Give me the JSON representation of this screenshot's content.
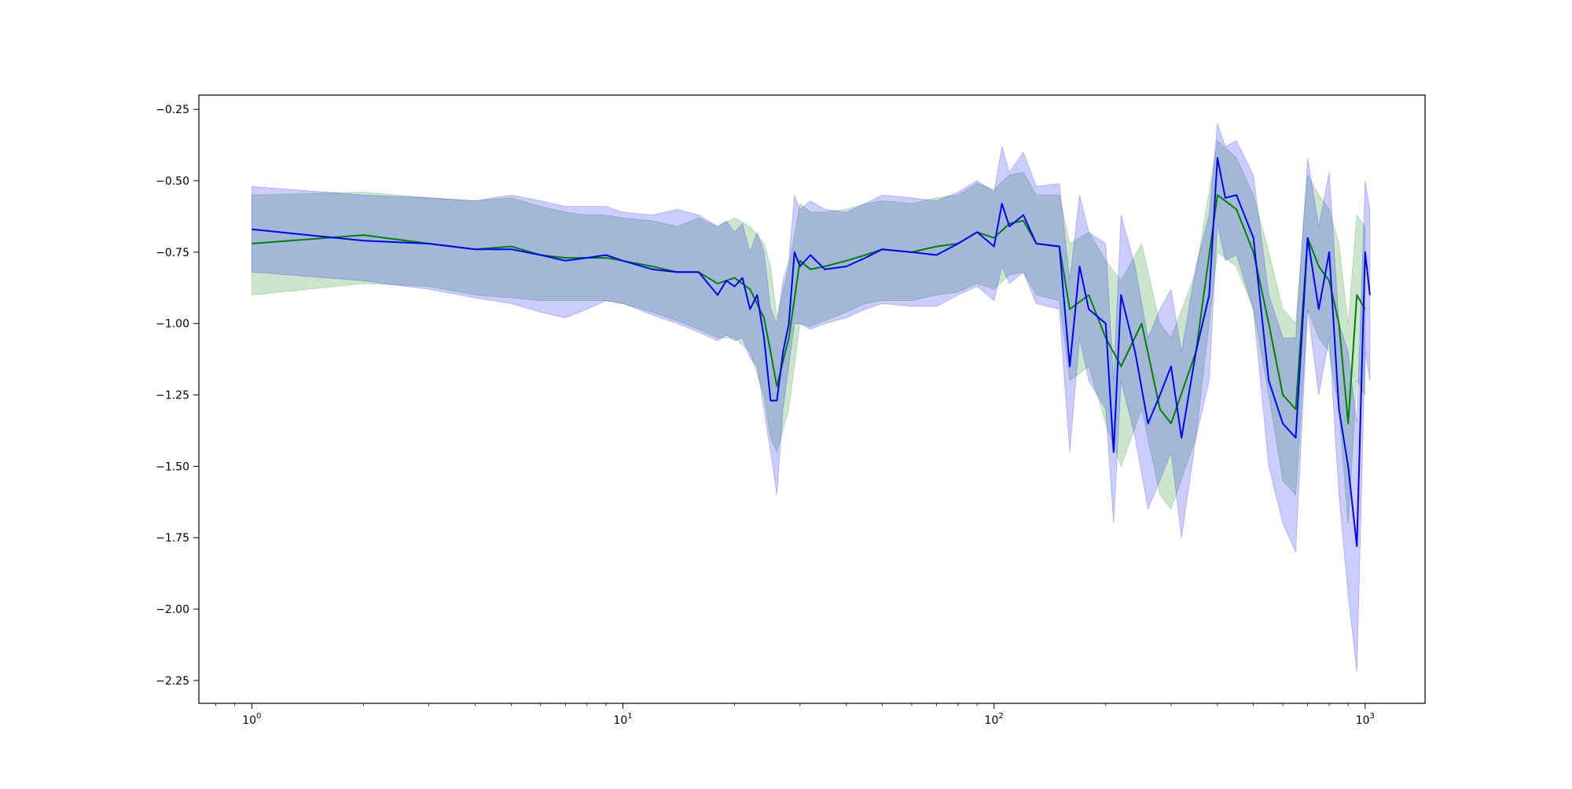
{
  "chart_data": {
    "type": "line",
    "title": "",
    "xlabel": "",
    "ylabel": "",
    "x_scale": "log",
    "xlim": [
      0.72,
      1450
    ],
    "ylim": [
      -2.33,
      -0.2
    ],
    "grid": false,
    "x_ticks": [
      {
        "value": 1,
        "base": "10",
        "exp": "0"
      },
      {
        "value": 10,
        "base": "10",
        "exp": "1"
      },
      {
        "value": 100,
        "base": "10",
        "exp": "2"
      },
      {
        "value": 1000,
        "base": "10",
        "exp": "3"
      }
    ],
    "y_ticks": [
      {
        "value": -0.25,
        "label": "−0.25"
      },
      {
        "value": -0.5,
        "label": "−0.50"
      },
      {
        "value": -0.75,
        "label": "−0.75"
      },
      {
        "value": -1.0,
        "label": "−1.00"
      },
      {
        "value": -1.25,
        "label": "−1.25"
      },
      {
        "value": -1.5,
        "label": "−1.50"
      },
      {
        "value": -1.75,
        "label": "−1.75"
      },
      {
        "value": -2.0,
        "label": "−2.00"
      },
      {
        "value": -2.25,
        "label": "−2.25"
      }
    ],
    "series": [
      {
        "color": "#008000",
        "band_color": "#008000",
        "x": [
          1,
          2,
          3,
          4,
          5,
          6,
          7,
          8,
          9,
          10,
          12,
          14,
          16,
          18,
          20,
          22,
          24,
          25,
          26,
          28,
          30,
          32,
          35,
          40,
          45,
          50,
          60,
          70,
          80,
          90,
          100,
          110,
          120,
          130,
          150,
          160,
          180,
          200,
          220,
          250,
          280,
          300,
          350,
          400,
          450,
          500,
          550,
          600,
          650,
          700,
          750,
          800,
          850,
          900,
          950,
          1000
        ],
        "y": [
          -0.72,
          -0.69,
          -0.72,
          -0.74,
          -0.73,
          -0.76,
          -0.77,
          -0.77,
          -0.77,
          -0.78,
          -0.8,
          -0.82,
          -0.82,
          -0.86,
          -0.84,
          -0.88,
          -0.98,
          -1.1,
          -1.22,
          -1.05,
          -0.78,
          -0.81,
          -0.8,
          -0.78,
          -0.76,
          -0.74,
          -0.75,
          -0.73,
          -0.72,
          -0.68,
          -0.7,
          -0.65,
          -0.64,
          -0.72,
          -0.73,
          -0.95,
          -0.9,
          -1.05,
          -1.15,
          -1.0,
          -1.3,
          -1.35,
          -1.1,
          -0.55,
          -0.6,
          -0.75,
          -1.0,
          -1.25,
          -1.3,
          -0.7,
          -0.8,
          -0.85,
          -1.0,
          -1.35,
          -0.9,
          -0.95
        ],
        "lower": [
          -0.9,
          -0.86,
          -0.87,
          -0.9,
          -0.91,
          -0.92,
          -0.92,
          -0.92,
          -0.92,
          -0.93,
          -0.96,
          -0.99,
          -1.02,
          -1.05,
          -1.05,
          -1.1,
          -1.25,
          -1.4,
          -1.45,
          -1.3,
          -1.0,
          -1.01,
          -0.99,
          -0.96,
          -0.93,
          -0.92,
          -0.92,
          -0.9,
          -0.89,
          -0.86,
          -0.88,
          -0.83,
          -0.82,
          -0.9,
          -0.92,
          -1.2,
          -1.15,
          -1.35,
          -1.5,
          -1.3,
          -1.6,
          -1.65,
          -1.4,
          -0.75,
          -0.8,
          -0.95,
          -1.25,
          -1.55,
          -1.6,
          -0.95,
          -1.05,
          -1.1,
          -1.3,
          -1.7,
          -1.2,
          -1.25
        ],
        "upper": [
          -0.55,
          -0.54,
          -0.56,
          -0.57,
          -0.56,
          -0.59,
          -0.61,
          -0.62,
          -0.62,
          -0.63,
          -0.64,
          -0.66,
          -0.63,
          -0.66,
          -0.63,
          -0.66,
          -0.72,
          -0.8,
          -0.98,
          -0.8,
          -0.58,
          -0.61,
          -0.61,
          -0.6,
          -0.58,
          -0.57,
          -0.58,
          -0.56,
          -0.55,
          -0.51,
          -0.53,
          -0.48,
          -0.47,
          -0.55,
          -0.55,
          -0.72,
          -0.68,
          -0.78,
          -0.85,
          -0.72,
          -1.0,
          -1.05,
          -0.82,
          -0.36,
          -0.42,
          -0.55,
          -0.75,
          -0.95,
          -1.0,
          -0.48,
          -0.55,
          -0.6,
          -0.72,
          -1.0,
          -0.62,
          -0.66
        ]
      },
      {
        "color": "#0000ff",
        "band_color": "#0000ff",
        "x": [
          1,
          2,
          3,
          4,
          5,
          6,
          7,
          8,
          9,
          10,
          12,
          14,
          16,
          18,
          19,
          20,
          21,
          22,
          23,
          24,
          25,
          26,
          27,
          28,
          29,
          30,
          32,
          35,
          40,
          45,
          50,
          60,
          70,
          80,
          90,
          100,
          105,
          110,
          120,
          130,
          150,
          160,
          170,
          180,
          200,
          210,
          220,
          240,
          260,
          280,
          300,
          320,
          350,
          380,
          400,
          420,
          450,
          500,
          550,
          600,
          650,
          700,
          750,
          800,
          850,
          900,
          950,
          1000,
          1030
        ],
        "y": [
          -0.67,
          -0.71,
          -0.72,
          -0.74,
          -0.74,
          -0.76,
          -0.78,
          -0.77,
          -0.76,
          -0.78,
          -0.81,
          -0.82,
          -0.82,
          -0.9,
          -0.85,
          -0.87,
          -0.84,
          -0.95,
          -0.9,
          -1.05,
          -1.27,
          -1.27,
          -1.1,
          -1.0,
          -0.75,
          -0.8,
          -0.76,
          -0.81,
          -0.8,
          -0.77,
          -0.74,
          -0.75,
          -0.76,
          -0.72,
          -0.68,
          -0.73,
          -0.58,
          -0.66,
          -0.62,
          -0.72,
          -0.73,
          -1.15,
          -0.8,
          -0.95,
          -1.0,
          -1.45,
          -0.9,
          -1.1,
          -1.35,
          -1.25,
          -1.15,
          -1.4,
          -1.1,
          -0.9,
          -0.42,
          -0.56,
          -0.55,
          -0.7,
          -1.2,
          -1.35,
          -1.4,
          -0.7,
          -0.95,
          -0.75,
          -1.3,
          -1.5,
          -1.78,
          -0.75,
          -0.9
        ],
        "lower": [
          -0.82,
          -0.85,
          -0.88,
          -0.91,
          -0.93,
          -0.96,
          -0.98,
          -0.95,
          -0.92,
          -0.93,
          -0.97,
          -1.0,
          -1.03,
          -1.06,
          -1.04,
          -1.06,
          -1.05,
          -1.12,
          -1.15,
          -1.3,
          -1.45,
          -1.6,
          -1.3,
          -1.15,
          -1.0,
          -1.0,
          -1.02,
          -1.0,
          -0.98,
          -0.95,
          -0.93,
          -0.94,
          -0.94,
          -0.9,
          -0.87,
          -0.92,
          -0.8,
          -0.86,
          -0.82,
          -0.93,
          -0.95,
          -1.45,
          -1.05,
          -1.2,
          -1.3,
          -1.7,
          -1.2,
          -1.4,
          -1.65,
          -1.55,
          -1.45,
          -1.75,
          -1.4,
          -1.2,
          -0.65,
          -0.78,
          -0.76,
          -0.95,
          -1.5,
          -1.7,
          -1.8,
          -0.95,
          -1.25,
          -1.05,
          -1.6,
          -1.95,
          -2.22,
          -1.1,
          -1.2
        ],
        "upper": [
          -0.52,
          -0.55,
          -0.56,
          -0.57,
          -0.55,
          -0.57,
          -0.59,
          -0.59,
          -0.59,
          -0.61,
          -0.62,
          -0.6,
          -0.62,
          -0.66,
          -0.64,
          -0.68,
          -0.65,
          -0.75,
          -0.68,
          -0.75,
          -0.95,
          -1.0,
          -0.85,
          -0.78,
          -0.55,
          -0.6,
          -0.57,
          -0.6,
          -0.61,
          -0.58,
          -0.55,
          -0.56,
          -0.57,
          -0.54,
          -0.5,
          -0.54,
          -0.38,
          -0.47,
          -0.4,
          -0.52,
          -0.51,
          -0.85,
          -0.55,
          -0.68,
          -0.72,
          -1.2,
          -0.62,
          -0.8,
          -1.05,
          -0.95,
          -0.88,
          -1.1,
          -0.8,
          -0.62,
          -0.3,
          -0.38,
          -0.36,
          -0.48,
          -0.9,
          -1.05,
          -1.05,
          -0.42,
          -0.66,
          -0.47,
          -1.0,
          -1.1,
          -1.35,
          -0.5,
          -0.6
        ]
      }
    ]
  }
}
